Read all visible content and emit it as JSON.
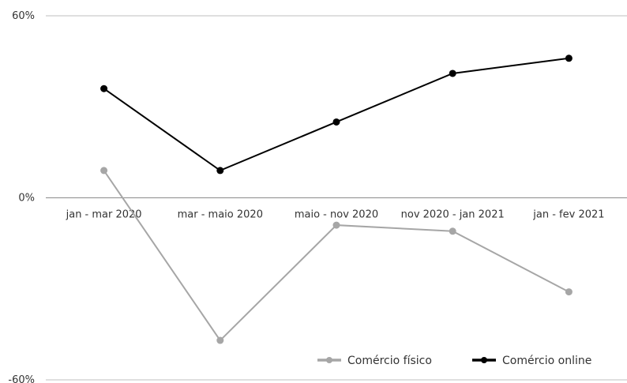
{
  "chart_data": {
    "type": "line",
    "categories": [
      "jan - mar 2020",
      "mar - maio 2020",
      "maio - nov 2020",
      "nov 2020 - jan 2021",
      "jan - fev 2021"
    ],
    "series": [
      {
        "name": "Comércio online",
        "values": [
          36,
          9,
          25,
          41,
          46
        ],
        "color": "#000000"
      },
      {
        "name": "Comércio físico",
        "values": [
          9,
          -47,
          -9,
          -11,
          -31
        ],
        "color": "#a6a6a6"
      }
    ],
    "ylim": [
      -60,
      60
    ],
    "yticks": [
      {
        "value": 60,
        "label": "60%"
      },
      {
        "value": 0,
        "label": "0%"
      },
      {
        "value": -60,
        "label": "-60%"
      }
    ],
    "legend": {
      "position": "bottom-right",
      "items": [
        "Comércio físico",
        "Comércio online"
      ]
    },
    "grid": true,
    "title": "",
    "xlabel": "",
    "ylabel": ""
  }
}
